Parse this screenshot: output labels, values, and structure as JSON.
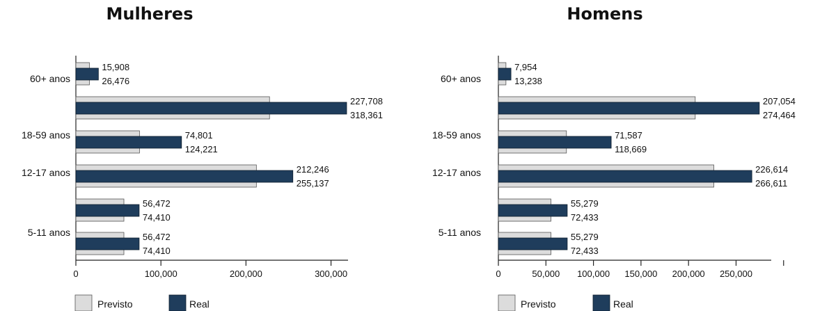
{
  "chart_data": [
    {
      "type": "bar",
      "orientation": "horizontal",
      "title": "Mulheres",
      "categories": [
        "60+ anos",
        "",
        "18-59 anos",
        "12-17 anos",
        "",
        "5-11 anos"
      ],
      "series": [
        {
          "name": "Previsto",
          "values": [
            15908,
            227708,
            74801,
            212246,
            56472,
            56472
          ],
          "color": "#dcdcdc"
        },
        {
          "name": "Real",
          "values": [
            26476,
            318361,
            124221,
            255137,
            74410,
            74410
          ],
          "color": "#1f3d5c"
        }
      ],
      "value_labels": [
        [
          "15,908",
          "26,476"
        ],
        [
          "227,708",
          "318,361"
        ],
        [
          "74,801",
          "124,221"
        ],
        [
          "212,246",
          "255,137"
        ],
        [
          "56,472",
          "74,410"
        ],
        [
          "56,472",
          "74,410"
        ]
      ],
      "xlim": [
        0,
        320000
      ],
      "xticks": [
        0,
        100000,
        200000,
        300000
      ],
      "xtick_labels": [
        "0",
        "100,000",
        "200,000",
        "300,000"
      ],
      "legend": [
        "Previsto",
        "Real"
      ],
      "legend_position": "bottom-left"
    },
    {
      "type": "bar",
      "orientation": "horizontal",
      "title": "Homens",
      "categories": [
        "60+ anos",
        "",
        "18-59 anos",
        "12-17 anos",
        "",
        "5-11 anos"
      ],
      "series": [
        {
          "name": "Previsto",
          "values": [
            7954,
            207054,
            71587,
            226614,
            55279,
            55279
          ],
          "color": "#dcdcdc"
        },
        {
          "name": "Real",
          "values": [
            13238,
            274464,
            118669,
            266611,
            72433,
            72433
          ],
          "color": "#1f3d5c"
        }
      ],
      "value_labels": [
        [
          "7,954",
          "13,238"
        ],
        [
          "207,054",
          "274,464"
        ],
        [
          "71,587",
          "118,669"
        ],
        [
          "226,614",
          "266,611"
        ],
        [
          "55,279",
          "72,433"
        ],
        [
          "55,279",
          "72,433"
        ]
      ],
      "xlim": [
        0,
        287000
      ],
      "xticks": [
        0,
        50000,
        100000,
        150000,
        200000,
        250000,
        300000
      ],
      "xtick_labels": [
        "0",
        "50,000",
        "100,000",
        "150,000",
        "200,000",
        "250,000",
        ""
      ],
      "legend": [
        "Previsto",
        "Real"
      ],
      "legend_position": "bottom-left"
    }
  ]
}
